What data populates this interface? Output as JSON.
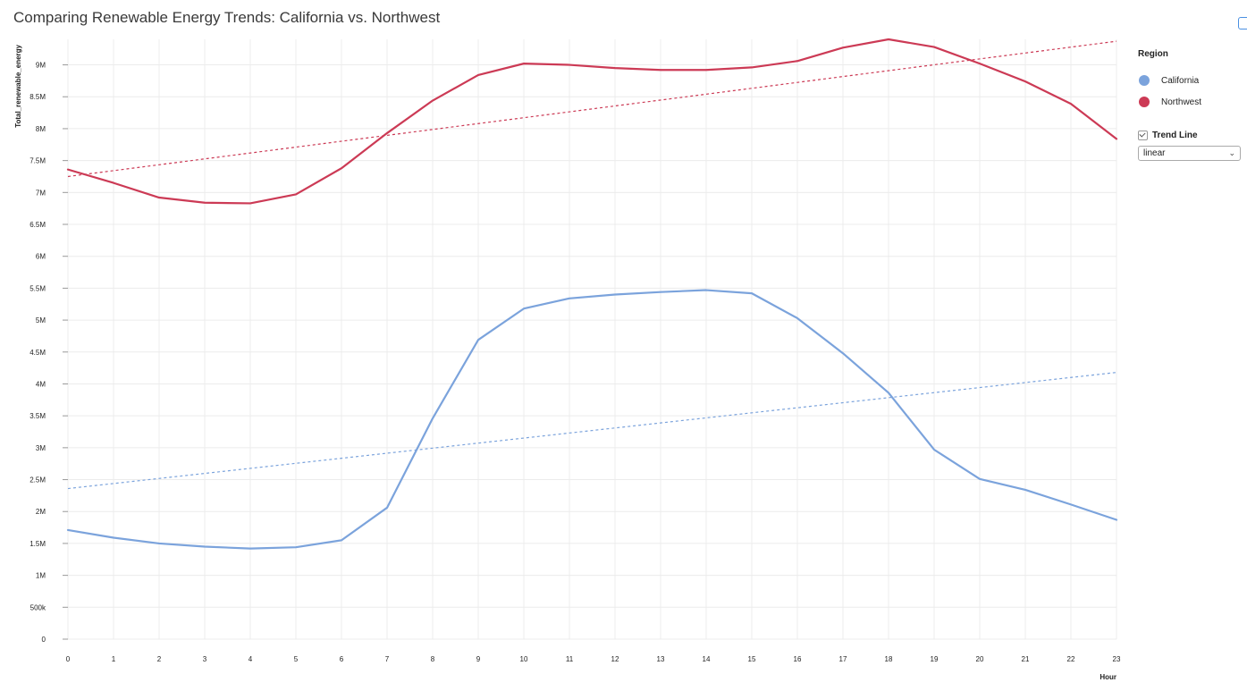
{
  "chart_data": {
    "type": "line",
    "title": "Comparing Renewable Energy Trends: California vs. Northwest",
    "xlabel": "Hour",
    "ylabel": "Total_renewable_energy",
    "x": [
      0,
      1,
      2,
      3,
      4,
      5,
      6,
      7,
      8,
      9,
      10,
      11,
      12,
      13,
      14,
      15,
      16,
      17,
      18,
      19,
      20,
      21,
      22,
      23
    ],
    "xlim": [
      0,
      23
    ],
    "ylim": [
      0,
      9400000
    ],
    "yticks": [
      0,
      500000,
      1000000,
      1500000,
      2000000,
      2500000,
      3000000,
      3500000,
      4000000,
      4500000,
      5000000,
      5500000,
      6000000,
      6500000,
      7000000,
      7500000,
      8000000,
      8500000,
      9000000
    ],
    "ytick_labels": [
      "0",
      "500k",
      "1M",
      "1.5M",
      "2M",
      "2.5M",
      "3M",
      "3.5M",
      "4M",
      "4.5M",
      "5M",
      "5.5M",
      "6M",
      "6.5M",
      "7M",
      "7.5M",
      "8M",
      "8.5M",
      "9M"
    ],
    "xtick_labels": [
      "0",
      "1",
      "2",
      "3",
      "4",
      "5",
      "6",
      "7",
      "8",
      "9",
      "10",
      "11",
      "12",
      "13",
      "14",
      "15",
      "16",
      "17",
      "18",
      "19",
      "20",
      "21",
      "22",
      "23"
    ],
    "grid": true,
    "legend_placement": "right",
    "series": [
      {
        "name": "California",
        "color": "#7ba3dc",
        "values": [
          1710000,
          1590000,
          1500000,
          1450000,
          1420000,
          1440000,
          1550000,
          2060000,
          3460000,
          4690000,
          5180000,
          5340000,
          5400000,
          5440000,
          5470000,
          5420000,
          5030000,
          4480000,
          3860000,
          2970000,
          2510000,
          2340000,
          2110000,
          1870000
        ],
        "trend": {
          "start": 2360000,
          "end": 4180000
        }
      },
      {
        "name": "Northwest",
        "color": "#cc3a55",
        "values": [
          7360000,
          7150000,
          6920000,
          6840000,
          6830000,
          6970000,
          7380000,
          7930000,
          8440000,
          8840000,
          9020000,
          9000000,
          8950000,
          8920000,
          8920000,
          8960000,
          9060000,
          9270000,
          9400000,
          9280000,
          9020000,
          8740000,
          8390000,
          7840000
        ],
        "trend": {
          "start": 7250000,
          "end": 9370000
        }
      }
    ]
  },
  "legend": {
    "title": "Region",
    "items": [
      {
        "label": "California",
        "color": "#7ba3dc"
      },
      {
        "label": "Northwest",
        "color": "#cc3a55"
      }
    ]
  },
  "trend_control": {
    "label": "Trend Line",
    "checked": true,
    "selected": "linear",
    "chevron_icon": "chevron-down-icon"
  }
}
